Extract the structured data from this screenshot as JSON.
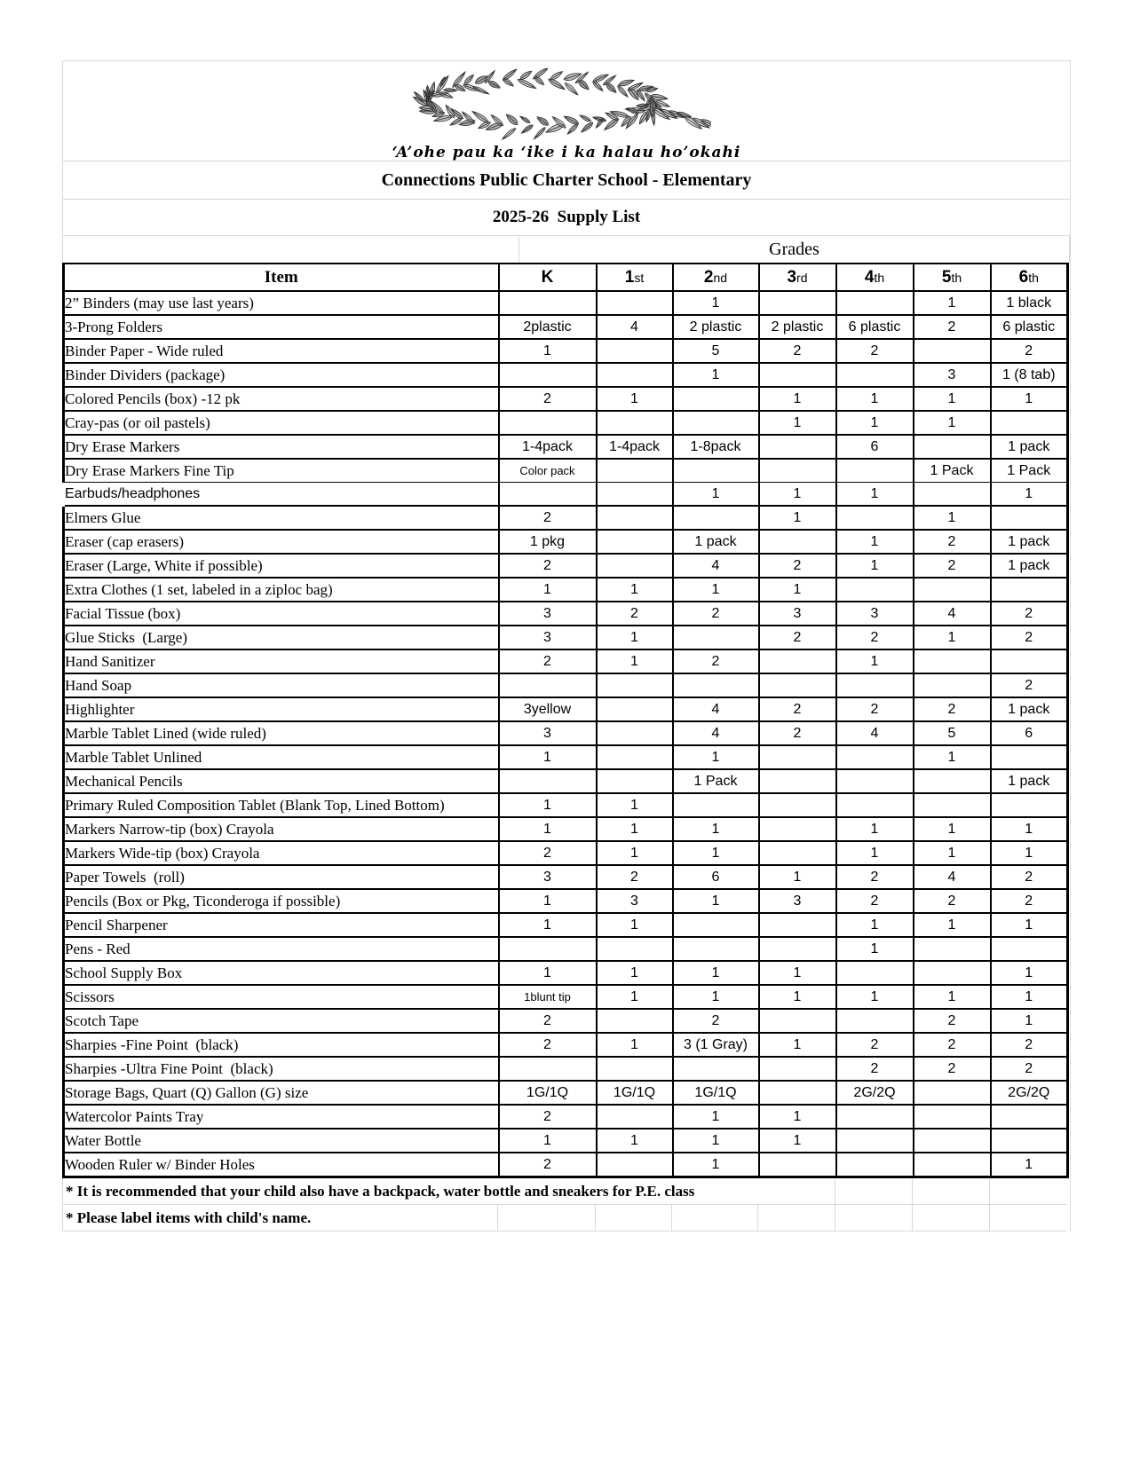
{
  "header": {
    "logo_caption": "‘A’ohe pau ka ‘ike i ka halau ho’okahi",
    "title": "Connections Public Charter School - Elementary",
    "subtitle": "2025-26  Supply List"
  },
  "table": {
    "grades_label": "Grades",
    "item_header": "Item",
    "grade_headers": [
      {
        "label": "K",
        "suffix": ""
      },
      {
        "label": "1",
        "suffix": "st"
      },
      {
        "label": "2",
        "suffix": "nd"
      },
      {
        "label": "3",
        "suffix": "rd"
      },
      {
        "label": "4",
        "suffix": "th"
      },
      {
        "label": "5",
        "suffix": "th"
      },
      {
        "label": "6",
        "suffix": "th"
      }
    ],
    "rows": [
      {
        "item": "2” Binders (may use last years)",
        "values": [
          "",
          "",
          "1",
          "",
          "",
          "1",
          "1 black"
        ]
      },
      {
        "item": "3-Prong Folders",
        "values": [
          "2plastic",
          "4",
          "2 plastic",
          "2 plastic",
          "6 plastic",
          "2",
          "6 plastic"
        ]
      },
      {
        "item": "Binder Paper - Wide ruled",
        "values": [
          "1",
          "",
          "5",
          "2",
          "2",
          "",
          "2"
        ]
      },
      {
        "item": "Binder Dividers (package)",
        "values": [
          "",
          "",
          "1",
          "",
          "",
          "3",
          "1 (8 tab)"
        ]
      },
      {
        "item": "Colored Pencils (box) -12 pk",
        "values": [
          "2",
          "1",
          "",
          "1",
          "1",
          "1",
          "1"
        ]
      },
      {
        "item": "Cray-pas (or oil pastels)",
        "values": [
          "",
          "",
          "",
          "1",
          "1",
          "1",
          ""
        ]
      },
      {
        "item": "Dry Erase Markers",
        "values": [
          "1-4pack",
          "1-4pack",
          "1-8pack",
          "",
          "6",
          "",
          "1 pack"
        ]
      },
      {
        "item": "Dry Erase Markers Fine Tip",
        "values": [
          "Color pack",
          "",
          "",
          "",
          "",
          "1 Pack",
          "1 Pack"
        ],
        "small": [
          0
        ],
        "thin_bottom": true
      },
      {
        "item": "Earbuds/headphones",
        "values": [
          "",
          "",
          "1",
          "1",
          "1",
          "",
          "1"
        ],
        "item_font": "sans",
        "no_left_border": true
      },
      {
        "item": "Elmers Glue",
        "values": [
          "2",
          "",
          "",
          "1",
          "",
          "1",
          ""
        ]
      },
      {
        "item": "Eraser (cap erasers)",
        "values": [
          "1 pkg",
          "",
          "1 pack",
          "",
          "1",
          "2",
          "1 pack"
        ]
      },
      {
        "item": "Eraser (Large, White if possible)",
        "values": [
          "2",
          "",
          "4",
          "2",
          "1",
          "2",
          "1 pack"
        ]
      },
      {
        "item": "Extra Clothes (1 set, labeled in a ziploc bag)",
        "values": [
          "1",
          "1",
          "1",
          "1",
          "",
          "",
          ""
        ]
      },
      {
        "item": "Facial Tissue (box)",
        "values": [
          "3",
          "2",
          "2",
          "3",
          "3",
          "4",
          "2"
        ]
      },
      {
        "item": "Glue Sticks  (Large)",
        "values": [
          "3",
          "1",
          "",
          "2",
          "2",
          "1",
          "2"
        ]
      },
      {
        "item": "Hand Sanitizer",
        "values": [
          "2",
          "1",
          "2",
          "",
          "1",
          "",
          ""
        ]
      },
      {
        "item": "Hand Soap",
        "values": [
          "",
          "",
          "",
          "",
          "",
          "",
          "2"
        ]
      },
      {
        "item": "Highlighter",
        "values": [
          "3yellow",
          "",
          "4",
          "2",
          "2",
          "2",
          "1 pack"
        ]
      },
      {
        "item": "Marble Tablet Lined (wide ruled)",
        "values": [
          "3",
          "",
          "4",
          "2",
          "4",
          "5",
          "6"
        ]
      },
      {
        "item": "Marble Tablet Unlined",
        "values": [
          "1",
          "",
          "1",
          "",
          "",
          "1",
          ""
        ]
      },
      {
        "item": "Mechanical Pencils",
        "values": [
          "",
          "",
          "1 Pack",
          "",
          "",
          "",
          "1 pack"
        ]
      },
      {
        "item": "Primary Ruled Composition Tablet (Blank Top, Lined Bottom)",
        "values": [
          "1",
          "1",
          "",
          "",
          "",
          "",
          ""
        ]
      },
      {
        "item": "Markers Narrow-tip (box) Crayola",
        "values": [
          "1",
          "1",
          "1",
          "",
          "1",
          "1",
          "1"
        ]
      },
      {
        "item": "Markers Wide-tip (box) Crayola",
        "values": [
          "2",
          "1",
          "1",
          "",
          "1",
          "1",
          "1"
        ]
      },
      {
        "item": "Paper Towels  (roll)",
        "values": [
          "3",
          "2",
          "6",
          "1",
          "2",
          "4",
          "2"
        ]
      },
      {
        "item": "Pencils (Box or Pkg, Ticonderoga if possible)",
        "values": [
          "1",
          "3",
          "1",
          "3",
          "2",
          "2",
          "2"
        ]
      },
      {
        "item": "Pencil Sharpener",
        "values": [
          "1",
          "1",
          "",
          "",
          "1",
          "1",
          "1"
        ]
      },
      {
        "item": "Pens - Red",
        "values": [
          "",
          "",
          "",
          "",
          "1",
          "",
          ""
        ]
      },
      {
        "item": "School Supply Box",
        "values": [
          "1",
          "1",
          "1",
          "1",
          "",
          "",
          "1"
        ]
      },
      {
        "item": "Scissors",
        "values": [
          "1blunt tip",
          "1",
          "1",
          "1",
          "1",
          "1",
          "1"
        ],
        "small": [
          0
        ]
      },
      {
        "item": "Scotch Tape",
        "values": [
          "2",
          "",
          "2",
          "",
          "",
          "2",
          "1"
        ]
      },
      {
        "item": "Sharpies -Fine Point  (black)",
        "values": [
          "2",
          "1",
          "3 (1 Gray)",
          "1",
          "2",
          "2",
          "2"
        ]
      },
      {
        "item": "Sharpies -Ultra Fine Point  (black)",
        "values": [
          "",
          "",
          "",
          "",
          "2",
          "2",
          "2"
        ]
      },
      {
        "item": "Storage Bags, Quart (Q) Gallon (G) size",
        "values": [
          "1G/1Q",
          "1G/1Q",
          "1G/1Q",
          "",
          "2G/2Q",
          "",
          "2G/2Q"
        ]
      },
      {
        "item": "Watercolor Paints Tray",
        "values": [
          "2",
          "",
          "1",
          "1",
          "",
          "",
          ""
        ]
      },
      {
        "item": "Water Bottle",
        "values": [
          "1",
          "1",
          "1",
          "1",
          "",
          "",
          ""
        ]
      },
      {
        "item": "Wooden Ruler w/ Binder Holes",
        "values": [
          "2",
          "",
          "1",
          "",
          "",
          "",
          "1"
        ]
      }
    ],
    "notes": [
      "* It is recommended that your child also have a backpack, water bottle and sneakers for P.E. class",
      "* Please label items with child's name."
    ]
  }
}
